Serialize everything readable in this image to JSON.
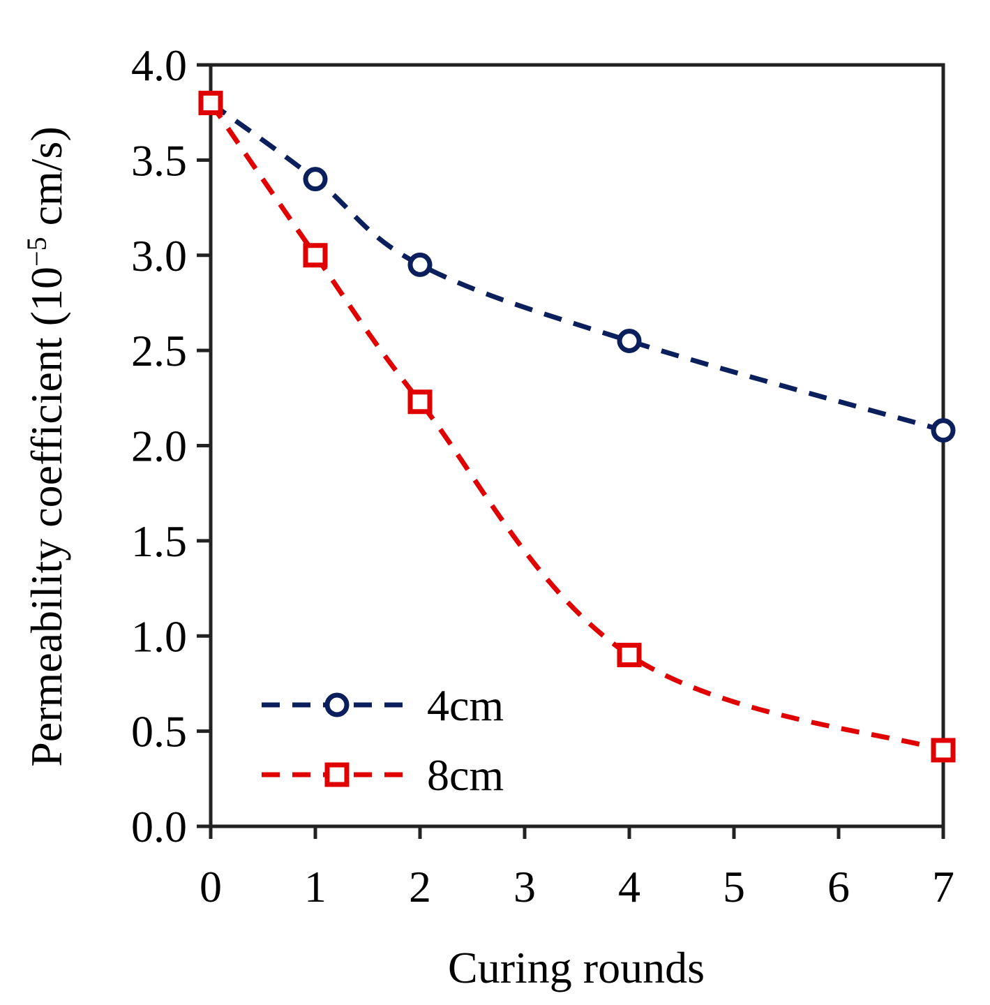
{
  "chart_data": {
    "type": "line",
    "xlabel": "Curing rounds",
    "ylabel_main": "Permeability coefficient (10",
    "ylabel_exp": "−5",
    "ylabel_tail": " cm/s)",
    "xlim": [
      0,
      7
    ],
    "ylim": [
      0.0,
      4.0
    ],
    "x_ticks": [
      "0",
      "1",
      "2",
      "3",
      "4",
      "5",
      "6",
      "7"
    ],
    "y_ticks": [
      "0.0",
      "0.5",
      "1.0",
      "1.5",
      "2.0",
      "2.5",
      "3.0",
      "3.5",
      "4.0"
    ],
    "grid": false,
    "legend_position": "bottom-left",
    "series": [
      {
        "name": "4cm",
        "color": "#0a1f5c",
        "marker": "circle",
        "x": [
          0,
          1,
          2,
          4,
          7
        ],
        "y": [
          3.8,
          3.4,
          2.95,
          2.55,
          2.08
        ]
      },
      {
        "name": "8cm",
        "color": "#e00000",
        "marker": "square",
        "x": [
          0,
          1,
          2,
          4,
          7
        ],
        "y": [
          3.8,
          3.0,
          2.23,
          0.9,
          0.4
        ]
      }
    ]
  }
}
